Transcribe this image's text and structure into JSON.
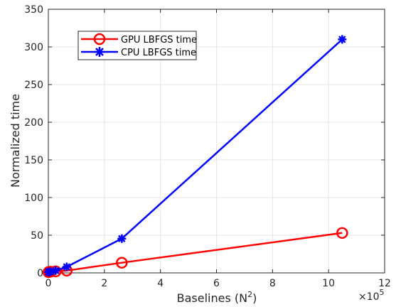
{
  "chart_data": {
    "type": "line",
    "title": "",
    "xlabel_main": "Baselines (N",
    "xlabel_sup": "2",
    "xlabel_tail": ")",
    "ylabel": "Normalized time",
    "x_exponent_base": "×10",
    "x_exponent_power": "5",
    "xlim": [
      0,
      12
    ],
    "ylim": [
      0,
      350
    ],
    "xticks": [
      0,
      2,
      4,
      6,
      8,
      10,
      12
    ],
    "yticks": [
      0,
      50,
      100,
      150,
      200,
      250,
      300,
      350
    ],
    "grid": true,
    "legend_position": "top-left",
    "series": [
      {
        "name": "GPU LBFGS time",
        "color": "#ff0000",
        "marker": "circle",
        "x": [
          0.0066,
          0.0164,
          0.0655,
          0.2621,
          0.6554,
          2.6214,
          10.4858
        ],
        "y": [
          1,
          1.2,
          1.5,
          2,
          3,
          13.5,
          53
        ]
      },
      {
        "name": "CPU LBFGS time",
        "color": "#0000ff",
        "marker": "asterisk",
        "x": [
          0.0066,
          0.0164,
          0.0655,
          0.2621,
          0.6554,
          2.6214,
          10.4858
        ],
        "y": [
          1,
          1.2,
          1.5,
          3,
          8,
          45.5,
          310
        ]
      }
    ]
  }
}
